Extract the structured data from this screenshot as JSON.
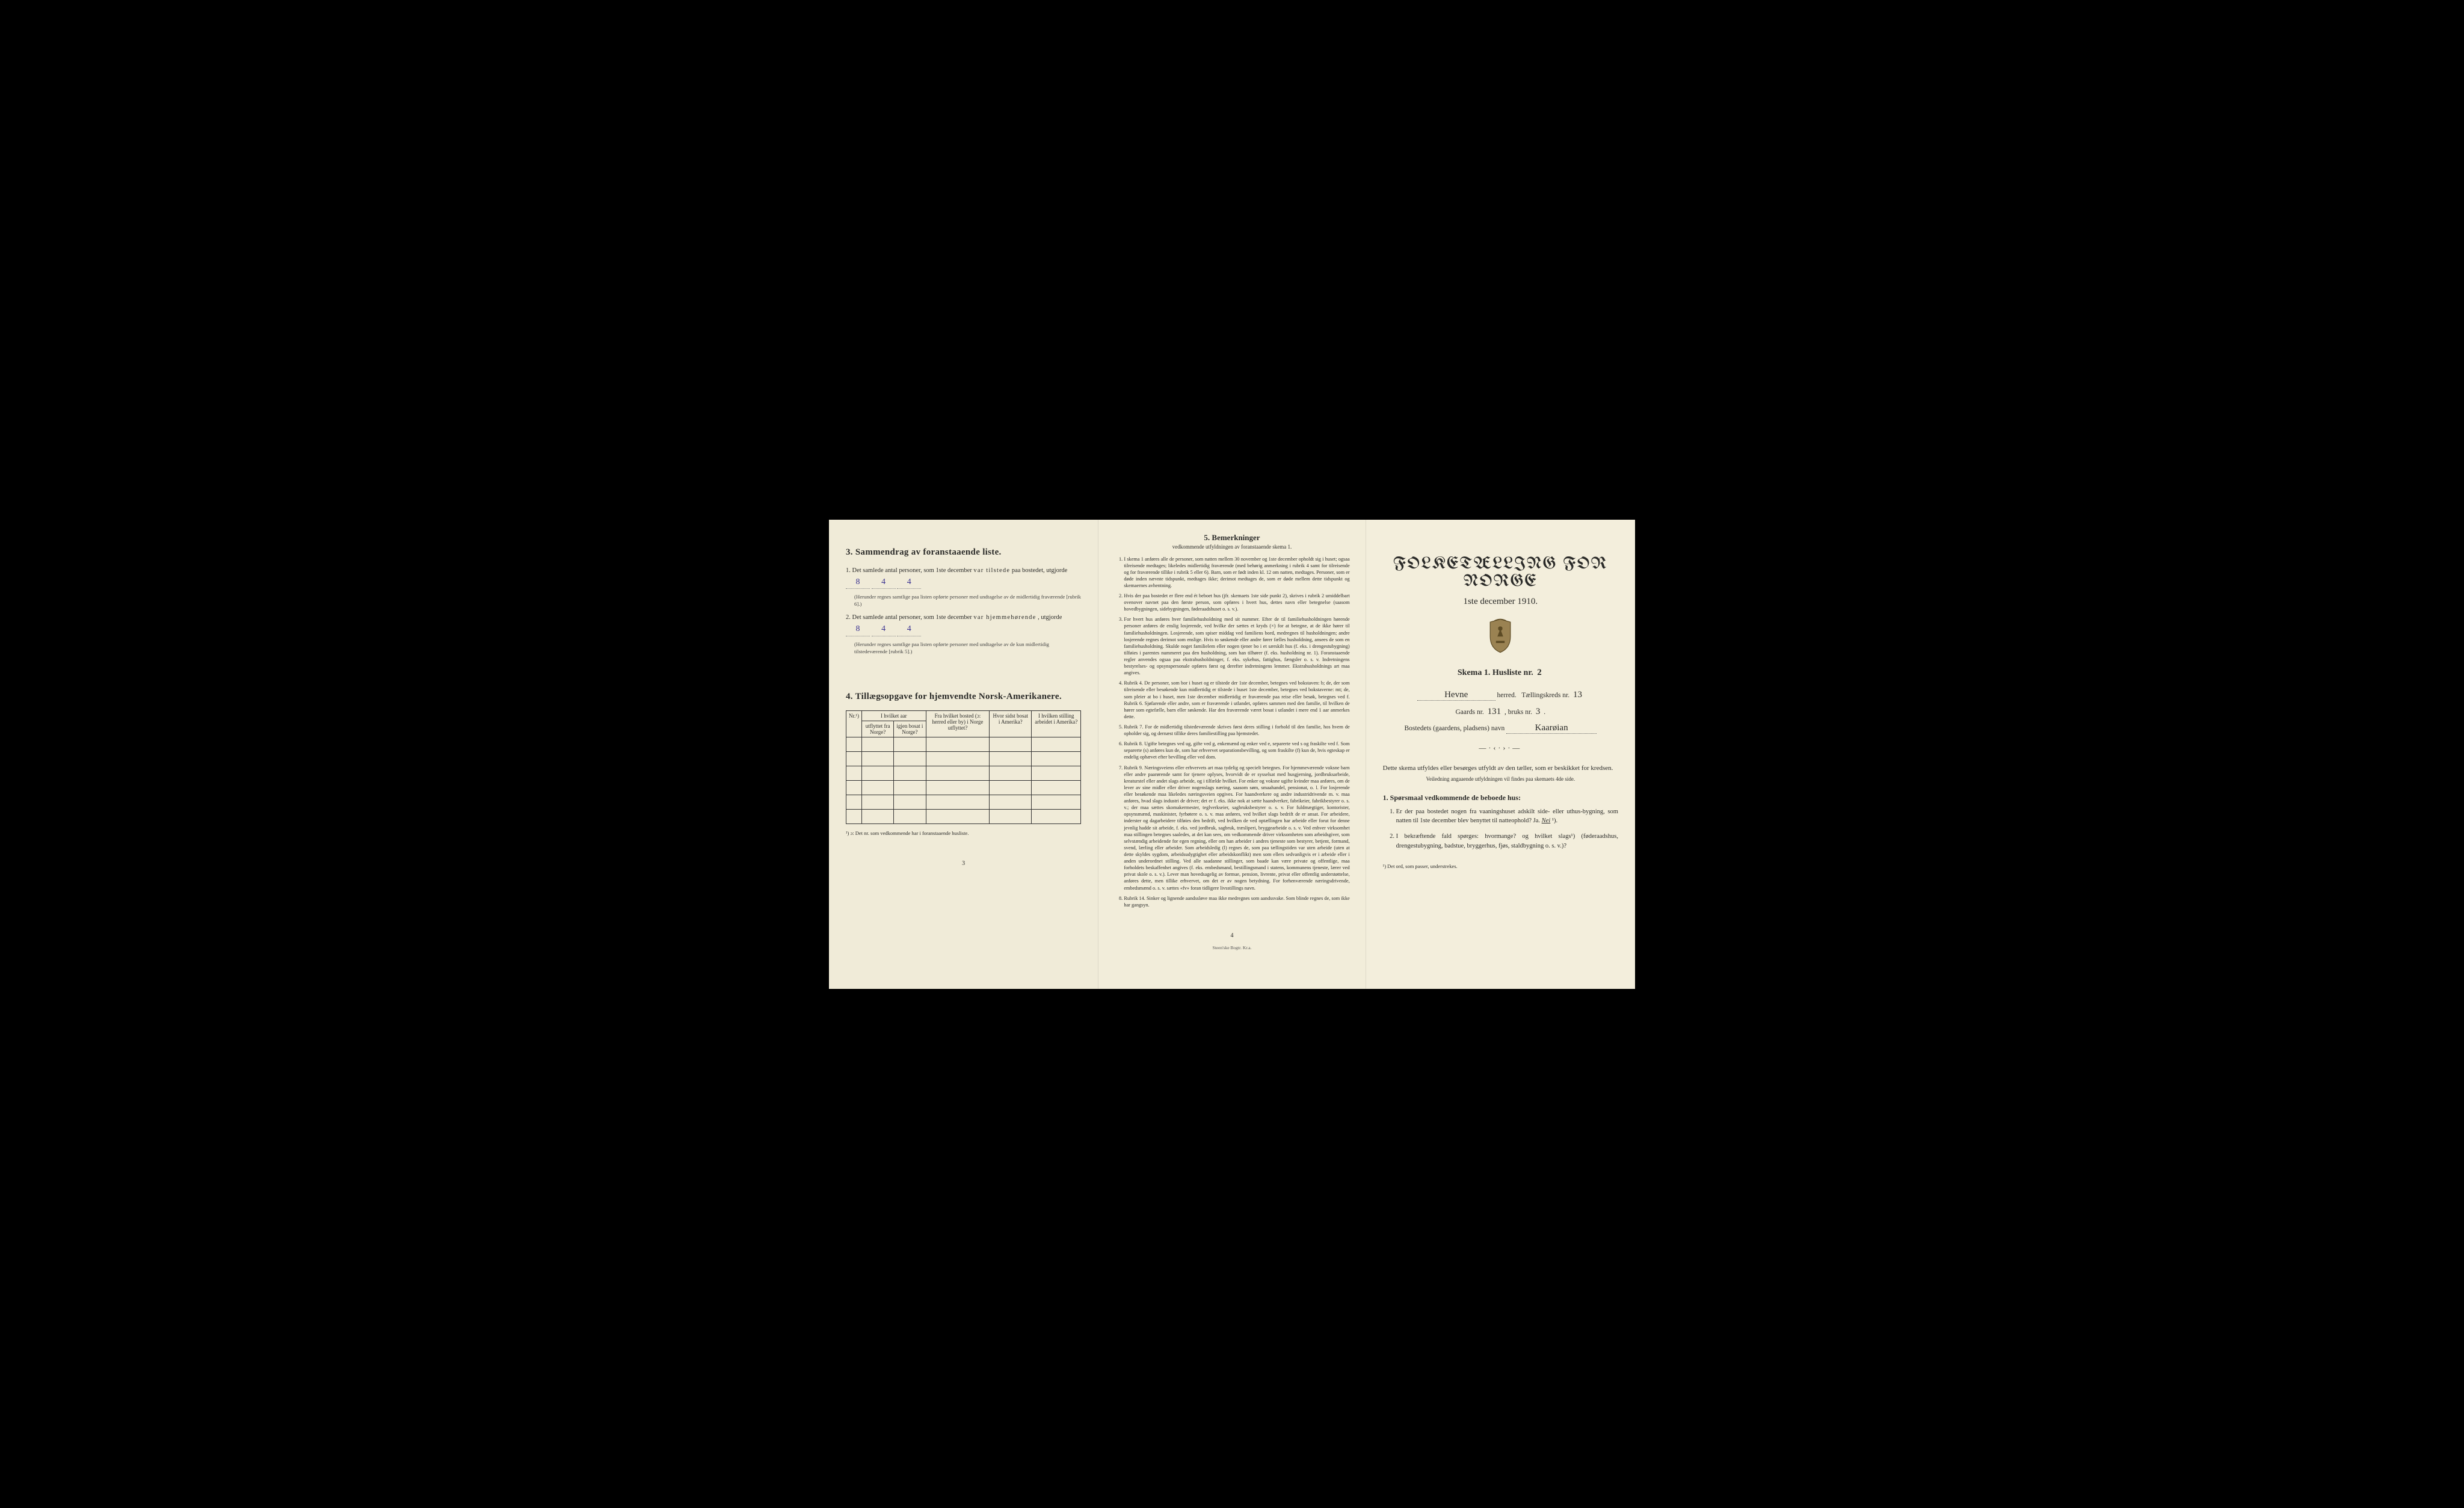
{
  "background_color": "#000000",
  "page_color": "#f1ecda",
  "ink_color": "#2a2a28",
  "handwriting_color": "#3a3290",
  "left": {
    "section3_heading": "3.   Sammendrag av foranstaaende liste.",
    "item1_pre": "1. Det samlede antal personer, som 1ste december ",
    "item1_bold": "var tilstede",
    "item1_post": " paa bostedet, utgjorde ",
    "item1_val_a": "8",
    "item1_val_b": "4",
    "item1_val_c": "4",
    "item1_note": "(Herunder regnes samtlige paa listen opførte personer med undtagelse av de midlertidig fraværende [rubrik 6].)",
    "item2_pre": "2. Det samlede antal personer, som 1ste december ",
    "item2_bold": "var hjemmehørende",
    "item2_post": ", utgjorde ",
    "item2_val_a": "8",
    "item2_val_b": "4",
    "item2_val_c": "4",
    "item2_note": "(Herunder regnes samtlige paa listen opførte personer med undtagelse av de kun midlertidig tilstedeværende [rubrik 5].)",
    "section4_heading": "4.  Tillægsopgave for hjemvendte Norsk-Amerikanere.",
    "table_headers": {
      "nr": "Nr.¹)",
      "col1_top": "I hvilket aar",
      "col1_a": "utflyttet fra Norge?",
      "col1_b": "igjen bosat i Norge?",
      "col2": "Fra hvilket bosted (ɔ: herred eller by) i Norge utflyttet?",
      "col3": "Hvor sidst bosat i Amerika?",
      "col4": "I hvilken stilling arbeidet i Amerika?"
    },
    "table_blank_rows": 6,
    "footnote": "¹) ɔ: Det nr. som vedkommende har i foranstaaende husliste.",
    "page_number": "3"
  },
  "middle": {
    "title_num": "5.",
    "title": "Bemerkninger",
    "subtitle": "vedkommende utfyldningen av foranstaaende skema 1.",
    "items": [
      "I skema 1 anføres alle de personer, som natten mellem 30 november og 1ste december opholdt sig i huset; ogsaa tilreisende medtages; likeledes midlertidig fraværende (med behørig anmerkning i rubrik 4 samt for tilreisende og for fraværende tillike i rubrik 5 eller 6). Barn, som er født inden kl. 12 om natten, medtages. Personer, som er døde inden nævnte tidspunkt, medtages ikke; derimot medtages de, som er døde mellem dette tidspunkt og skemaernes avhentning.",
      "Hvis der paa bostedet er flere end ét beboet hus (jfr. skemaets 1ste side punkt 2), skrives i rubrik 2 umiddelbart ovenover navnet paa den første person, som opføres i hvert hus, dettes navn eller betegnelse (saasom hovedbygningen, sidebygningen, føderaadshuset o. s. v.).",
      "For hvert hus anføres hver familiehusholdning med sit nummer. Efter de til familiehusholdningen hørende personer anføres de enslig losjerende, ved hvilke der sættes et kryds (×) for at betegne, at de ikke hører til familiehusholdningen. Losjerende, som spiser middag ved familiens bord, medregnes til husholdningen; andre losjerende regnes derimot som enslige. Hvis to søskende eller andre fører fælles husholdning, ansees de som en familiehusholdning. Skulde noget familielem eller nogen tjener bo i et særskilt hus (f. eks. i drengestubygning) tilføies i parentes nummeret paa den husholdning, som han tilhører (f. eks. husholdning nr. 1).  Foranstaaende regler anvendes ogsaa paa ekstrahusholdninger, f. eks. sykehus, fattighus, fængsler o. s. v. Indretningens bestyrelses- og opsynspersonale opføres først og derefter indretningens lemmer. Ekstrahusholdnings art maa angives.",
      "Rubrik 4. De personer, som bor i huset og er tilstede der 1ste december, betegnes ved bokstaven: b; de, der som tilreisende eller besøkende kun midlertidig er tilstede i huset 1ste december, betegnes ved bokstaverne: mt; de, som pleier at bo i huset, men 1ste december midlertidig er fraværende paa reise eller besøk, betegnes ved f.  Rubrik 6. Sjøfarende eller andre, som er fraværende i utlandet, opføres sammen med den familie, til hvilken de hører som egtefælle, barn eller søskende.  Har den fraværende været bosat i utlandet i mere end 1 aar anmerkes dette.",
      "Rubrik 7. For de midlertidig tilstedeværende skrives først deres stilling i forhold til den familie, hos hvem de opholder sig, og dernæst tillike deres familiestilling paa hjemstedet.",
      "Rubrik 8. Ugifte betegnes ved ug, gifte ved g, enkemænd og enker ved e, separerte ved s og fraskilte ved f. Som separerte (s) anføres kun de, som har erhvervet separationsbevilling, og som fraskilte (f) kun de, hvis egteskap er endelig ophævet efter bevilling eller ved dom.",
      "Rubrik 9. Næringsveiens eller erhvervets art maa tydelig og specielt betegnes.  For hjemmeværende voksne barn eller andre paarørende samt for tjenere oplyses, hvorvidt de er sysselsat med husgjerning, jordbruksarbeide, kreaturstel eller andet slags arbeide, og i tilfælde hvilket. For enker og voksne ugifte kvinder maa anføres, om de lever av sine midler eller driver nogenslags næring, saasom søm, smaahandel, pensionat, o. l.  For losjerende eller besøkende maa likeledes næringsveien opgives.  For haandverkere og andre industridrivende m. v. maa anføres, hvad slags industri de driver; det er f. eks. ikke nok at sætte haandverker, fabrikeier, fabrikbestyrer o. s. v.; der maa sættes skomakermester, teglverkseier, sagbruksbestyrer o. s. v.  For fuldmægtiger, kontorister, opsynsmænd, maskinister, fyrbøtere o. s. v. maa anføres, ved hvilket slags bedrift de er ansat.  For arbeidere, inderster og dagarbeidere tilføies den bedrift, ved hvilken de ved optællingen har arbeide eller forut for denne jevnlig hadde sit arbeide, f. eks. ved jordbruk, sagbruk, træsliperi, bryggearbeide o. s. v.  Ved enhver virksomhet maa stillingen betegnes saaledes, at det kan sees, om vedkommende driver virksomheten som arbeidsgiver, som selvstændig arbeidende for egen regning, eller om han arbeider i andres tjeneste som bestyrer, betjent, formand, svend, lærling eller arbeider.  Som arbeidsledig (l) regnes de, som paa tællingstiden var uten arbeide (uten at dette skyldes sygdom, arbeidsudygtighet eller arbeidskonflikt) men som ellers sedvanligvis er i arbeide eller i anden underordnet stilling.  Ved alle saadanne stillinger, som baade kan være private og offentlige, maa forholdets beskaffenhet angives (f. eks. embedsmand, bestillingsmand i statens, kommunens tjeneste, lærer ved privat skole o. s. v.).  Lever man hovedsagelig av formue, pension, livrente, privat eller offentlig understøttelse, anføres dette, men tillike erhvervet, om det er av nogen betydning.  For forhenværende næringsdrivende, embedsmænd o. s. v. sættes «fv» foran tidligere livsstillings navn.",
      "Rubrik 14. Sinker og lignende aandssløve maa ikke medregnes som aandssvake.  Som blinde regnes de, som ikke har gangsyn."
    ],
    "page_number": "4",
    "printer": "Steen'ske Bogtr. Kr.a."
  },
  "right": {
    "title": "FOLKETÆLLING FOR NORGE",
    "subtitle": "1ste december 1910.",
    "skema_label": "Skema 1.  Husliste nr.",
    "husliste_nr": "2",
    "herred_value": "Hevne",
    "herred_label": "herred.",
    "kreds_label": "Tællingskreds nr.",
    "kreds_nr": "13",
    "gaards_label": "Gaards nr.",
    "gaards_nr": "131",
    "bruks_label": ", bruks nr.",
    "bruks_nr": "3",
    "bosted_label": "Bostedets (gaardens, pladsens) navn",
    "bosted_value": "Kaarøian",
    "ornament": "―·‹·›·―",
    "body_text": "Dette skema utfyldes eller besørges utfyldt av den tæller, som er beskikket for kredsen.",
    "body_small": "Veiledning angaaende utfyldningen vil findes paa skemaets 4de side.",
    "q_heading": "1. Spørsmaal vedkommende de beboede hus:",
    "q1": "Er der paa bostedet nogen fra vaaningshuset adskilt side- eller uthus-bygning, som natten til 1ste december blev benyttet til natteophold?   Ja.   Nei ¹).",
    "q1_answer_underlined": "Nei",
    "q2": "I bekræftende fald spørges: hvormange?        og hvilket slags¹) (føderaadshus, drengestubygning, badstue, bryggerhus, fjøs, staldbygning o. s. v.)?",
    "footnote": "¹) Det ord, som passer, understrekes."
  }
}
